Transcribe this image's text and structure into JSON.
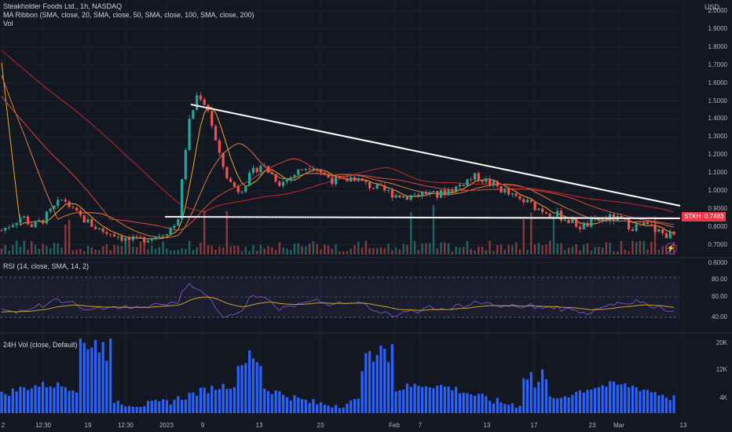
{
  "main_legend": {
    "title": "Steakholder Foods Ltd., 1h, NASDAQ",
    "ma_ribbon": "MA Ribbon (SMA, close, 20, SMA, close, 50, SMA, close, 100, SMA, close, 200)",
    "vol": "Vol"
  },
  "currency": "USD",
  "price_axis": [
    "2.0000",
    "1.9000",
    "1.8000",
    "1.7000",
    "1.6000",
    "1.5000",
    "1.4000",
    "1.3000",
    "1.2000",
    "1.1000",
    "1.0000",
    "0.9000",
    "0.8000",
    "0.7000",
    "0.6000"
  ],
  "price_tag": {
    "ticker": "STKH",
    "value": "0.7483"
  },
  "rsi_legend": "RSI (14, close, SMA, 14, 2)",
  "rsi_axis": [
    "80.00",
    "60.00",
    "40.00"
  ],
  "vol24_legend": "24H Vol (close, Default)",
  "vol24_axis": [
    "20K",
    "12K",
    "4K"
  ],
  "time_axis": [
    "2",
    "12:30",
    "19",
    "12:30",
    "2023",
    "9",
    "13",
    "23",
    "Feb",
    "7",
    "13",
    "17",
    "23",
    "Mar",
    "13"
  ],
  "colors": {
    "up": "#26a69a",
    "down": "#ef5350",
    "ma20": "#f5a623",
    "ma50": "#e07b39",
    "ma100": "#d84a3a",
    "ma200": "#c62828",
    "rsi": "#7e57c2",
    "rsi_ma": "#c9a227",
    "vol24": "#2962ff"
  },
  "chart_data": {
    "type": "candlestick",
    "title": "Steakholder Foods Ltd., 1h, NASDAQ",
    "y_unit": "USD",
    "ylim": [
      0.55,
      2.05
    ],
    "x_ticks": [
      "2",
      "12:30",
      "19",
      "12:30",
      "2023",
      "9",
      "13",
      "23",
      "Feb",
      "7",
      "13",
      "17",
      "23",
      "Mar",
      "13"
    ],
    "close_path": [
      0.78,
      0.82,
      0.86,
      0.8,
      0.84,
      0.9,
      0.96,
      0.88,
      0.84,
      0.8,
      0.77,
      0.76,
      0.73,
      0.72,
      0.74,
      0.75,
      0.78,
      0.82,
      1.35,
      1.55,
      1.45,
      1.2,
      1.05,
      1.0,
      1.08,
      1.15,
      1.1,
      1.04,
      1.08,
      1.12,
      1.15,
      1.1,
      1.06,
      1.05,
      1.08,
      1.04,
      1.02,
      1.0,
      0.98,
      0.97,
      0.98,
      0.99,
      0.97,
      1.0,
      1.02,
      1.06,
      1.08,
      1.05,
      1.02,
      0.98,
      0.95,
      0.93,
      0.9,
      0.88,
      0.86,
      0.83,
      0.8,
      0.82,
      0.84,
      0.85,
      0.83,
      0.8,
      0.81,
      0.79,
      0.76,
      0.75
    ],
    "trendlines": [
      {
        "name": "descending-resistance",
        "from": [
          1.45
        ],
        "to": [
          0.78
        ]
      },
      {
        "name": "horizontal-support",
        "level": 0.735
      }
    ],
    "last_price": 0.7483,
    "rsi_levels": [
      80,
      60,
      40
    ],
    "rsi_band": [
      30,
      70
    ],
    "vol24_axis_max": "20K"
  }
}
